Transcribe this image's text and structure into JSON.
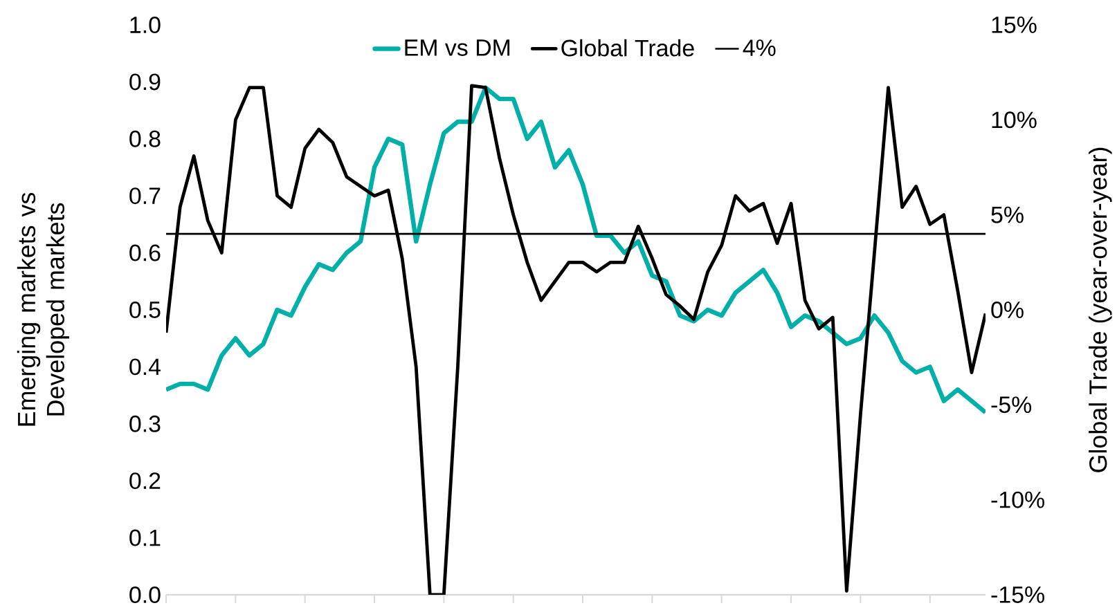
{
  "chart_data": {
    "type": "line",
    "ylabel": "Emerging markets vs Developed markets",
    "y2label": "Global Trade (year-over-year)",
    "categories": [
      null,
      null,
      null,
      null,
      null,
      null,
      null,
      null,
      null,
      null,
      null,
      null,
      null,
      null,
      null,
      null,
      null,
      null,
      null,
      null,
      null,
      null,
      null,
      null,
      null,
      null,
      null,
      null,
      null,
      null,
      null,
      null,
      null,
      null,
      null,
      null,
      null,
      null,
      null,
      null,
      null,
      null,
      null,
      null,
      null,
      null,
      null,
      null,
      null,
      null,
      null,
      null,
      null,
      null,
      null,
      null,
      null,
      null,
      null,
      null
    ],
    "series": [
      {
        "name": "EM vs DM",
        "color": "#00b0a8",
        "values": [
          0.36,
          0.37,
          0.37,
          0.36,
          0.42,
          0.45,
          0.42,
          0.44,
          0.5,
          0.49,
          0.54,
          0.58,
          0.57,
          0.6,
          0.62,
          0.75,
          0.8,
          0.79,
          0.62,
          0.72,
          0.81,
          0.83,
          0.83,
          0.89,
          0.87,
          0.87,
          0.8,
          0.83,
          0.75,
          0.78,
          0.72,
          0.63,
          0.63,
          0.6,
          0.62,
          0.56,
          0.55,
          0.49,
          0.48,
          0.5,
          0.49,
          0.53,
          0.55,
          0.57,
          0.53,
          0.47,
          0.49,
          0.48,
          0.46,
          0.44,
          0.45,
          0.49,
          0.46,
          0.41,
          0.39,
          0.4,
          0.34,
          0.36,
          0.34,
          0.32
        ]
      },
      {
        "name": "Global Trade",
        "color": "#000000",
        "axis": "y2",
        "values": [
          -1.2,
          5.4,
          8.1,
          4.7,
          3,
          10,
          11.7,
          11.7,
          6,
          5.4,
          8.5,
          9.5,
          8.8,
          7,
          6.5,
          6,
          6.3,
          2.7,
          -3,
          -15,
          -15,
          -3,
          11.8,
          11.7,
          8,
          5,
          2.5,
          0.5,
          1.5,
          2.5,
          2.5,
          2,
          2.5,
          2.5,
          4.4,
          2.7,
          0.8,
          0.2,
          -0.5,
          2,
          3.4,
          6,
          5.2,
          5.6,
          3.5,
          5.6,
          0.5,
          -1,
          -0.4,
          -14.8,
          -5.5,
          3,
          11.7,
          5.4,
          6.5,
          4.5,
          5,
          1,
          -3.3,
          -0.2
        ]
      }
    ],
    "ylim": [
      0,
      1
    ],
    "yticks": [
      {
        "value": 0,
        "label": "0.0"
      },
      0.1,
      0.2,
      0.3,
      0.4,
      0.5,
      0.6,
      0.7,
      0.8,
      0.9,
      {
        "value": 1,
        "label": "1.0"
      }
    ],
    "y2lim": [
      -15,
      15
    ],
    "y2ticks": [
      {
        "value": -15,
        "label": "-15%"
      },
      {
        "value": -10,
        "label": "-10%"
      },
      {
        "value": -5,
        "label": "-5%"
      },
      {
        "value": 0,
        "label": "0%"
      },
      {
        "value": 5,
        "label": "5%"
      },
      {
        "value": 10,
        "label": "10%"
      },
      {
        "value": 15,
        "label": "15%"
      }
    ],
    "ref_lines": [
      {
        "axis": "y2",
        "value": 4,
        "label": "4%",
        "color": "#000000"
      }
    ],
    "legend": "top",
    "marker": "none"
  }
}
